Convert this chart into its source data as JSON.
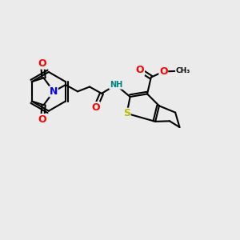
{
  "bg_color": "#ebebeb",
  "bond_color": "#000000",
  "line_width": 1.5,
  "atom_colors": {
    "N": "#0000ff",
    "O": "#ff0000",
    "S": "#bbbb00",
    "NH": "#008080",
    "C": "#000000"
  },
  "font_size": 7
}
